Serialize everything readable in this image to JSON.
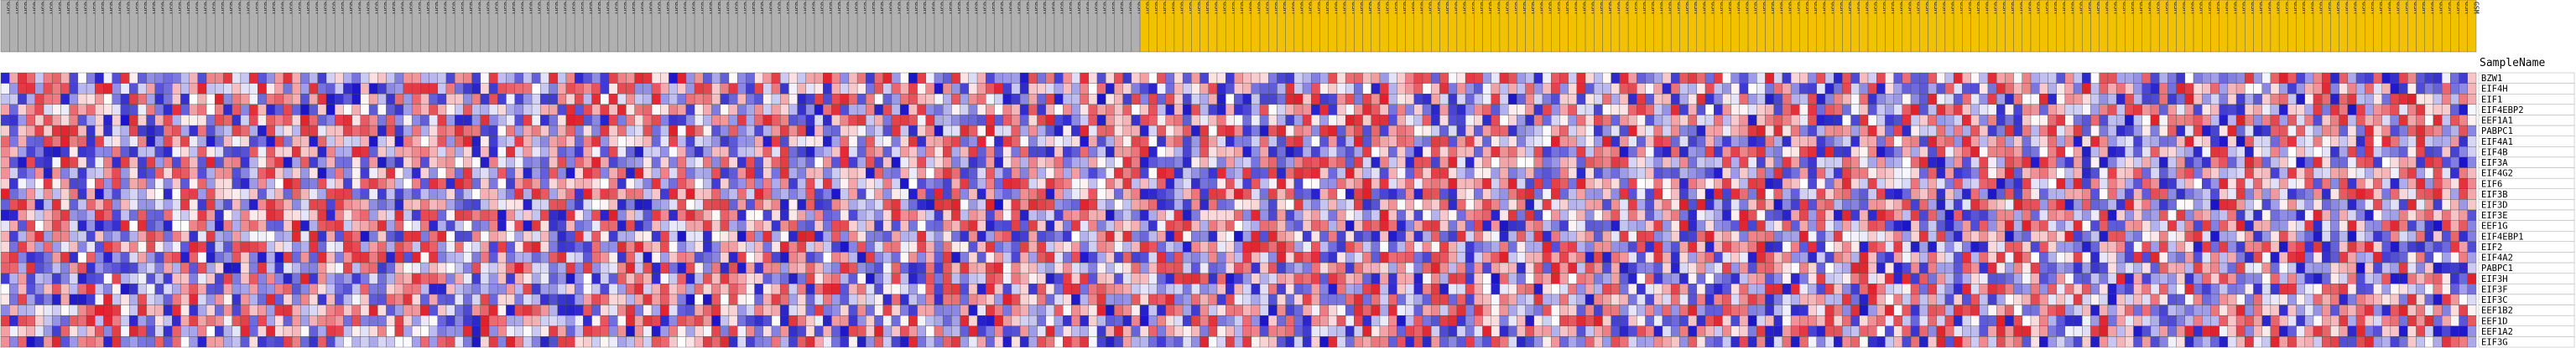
{
  "chart_data": {
    "type": "heatmap",
    "row_header": "SampleName",
    "rows": [
      "BZW1",
      "EIF4H",
      "EIF1",
      "EIF4EBP2",
      "EEF1A1",
      "PABPC1",
      "EIF4A1",
      "EIF4B",
      "EIF3A",
      "EIF4G2",
      "EIF6",
      "EIF3B",
      "EIF3D",
      "EIF3E",
      "EEF1G",
      "EIF4EBP1",
      "EIF2",
      "EIF4A2",
      "PABPC1",
      "EIF3H",
      "EIF3F",
      "EIF3C",
      "EEF1B2",
      "EEF1D",
      "EEF1A2",
      "EIF3G"
    ],
    "groups": [
      {
        "label_prefix": "GSM",
        "count": 133,
        "color": "#b0b0b0"
      },
      {
        "label_prefix": "GSM",
        "count": 156,
        "color": "#f2c200"
      }
    ],
    "color_scale": {
      "low": "#1a14c8",
      "mid": "#ffffff",
      "high": "#e0202a"
    }
  }
}
